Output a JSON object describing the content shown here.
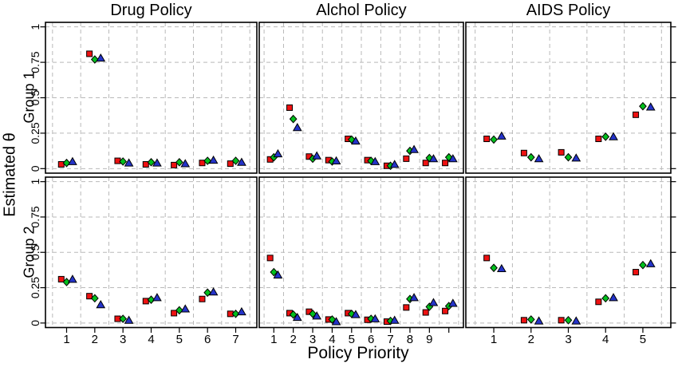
{
  "chart_data": {
    "type": "scatter",
    "layout": "trellis 2 rows x 3 columns",
    "xlabel": "Policy Priority",
    "ylabel": "Estimated θ",
    "col_titles": [
      "Drug Policy",
      "Alchol Policy",
      "AIDS Policy"
    ],
    "row_labels": [
      "Group 1",
      "Group 2"
    ],
    "ylim": [
      0,
      1
    ],
    "y_ticks": [
      0,
      0.25,
      0.5,
      0.75,
      1
    ],
    "y_tick_labels": [
      "0",
      "0.25",
      "0.5",
      "0.75",
      "1"
    ],
    "x_tick_labels": [
      [
        "1",
        "2",
        "3",
        "4",
        "5",
        "6",
        "7"
      ],
      [
        "1",
        "2",
        "3",
        "4",
        "5",
        "6",
        "7",
        "8",
        "9",
        ""
      ],
      [
        "1",
        "2",
        "3",
        "4",
        "5"
      ]
    ],
    "grid": "dashed gray; horizontal at y ticks, vertical at category boundaries",
    "legend": null,
    "series": [
      {
        "name": "red-square",
        "marker": "square",
        "fill": "#ee1111",
        "edge": "#000000",
        "dodge": -0.19
      },
      {
        "name": "green-diamond",
        "marker": "diamond",
        "fill": "#00bf1c",
        "edge": "#000000",
        "dodge": 0
      },
      {
        "name": "blue-triangle",
        "marker": "triangle",
        "fill": "#2433c9",
        "edge": "#000000",
        "dodge": 0.21
      }
    ],
    "panels": [
      {
        "row": "Group 1",
        "col": "Drug Policy",
        "x": [
          1,
          2,
          3,
          4,
          5,
          6,
          7
        ],
        "red_square": [
          0.03,
          0.81,
          0.055,
          0.03,
          0.025,
          0.04,
          0.035
        ],
        "green_diamond": [
          0.04,
          0.77,
          0.05,
          0.045,
          0.045,
          0.055,
          0.055
        ],
        "blue_triangle": [
          0.05,
          0.78,
          0.04,
          0.04,
          0.035,
          0.06,
          0.045
        ]
      },
      {
        "row": "Group 1",
        "col": "Alchol Policy",
        "x": [
          1,
          2,
          3,
          4,
          5,
          6,
          7,
          8,
          9,
          10
        ],
        "red_square": [
          0.065,
          0.43,
          0.085,
          0.06,
          0.21,
          0.06,
          0.02,
          0.07,
          0.04,
          0.04
        ],
        "green_diamond": [
          0.08,
          0.35,
          0.07,
          0.05,
          0.205,
          0.055,
          0.02,
          0.125,
          0.075,
          0.08
        ],
        "blue_triangle": [
          0.105,
          0.29,
          0.09,
          0.055,
          0.195,
          0.05,
          0.03,
          0.135,
          0.07,
          0.07
        ]
      },
      {
        "row": "Group 1",
        "col": "AIDS Policy",
        "x": [
          1,
          2,
          3,
          4,
          5
        ],
        "red_square": [
          0.21,
          0.11,
          0.115,
          0.21,
          0.38
        ],
        "green_diamond": [
          0.205,
          0.08,
          0.08,
          0.225,
          0.44
        ],
        "blue_triangle": [
          0.23,
          0.07,
          0.075,
          0.225,
          0.435
        ]
      },
      {
        "row": "Group 2",
        "col": "Drug Policy",
        "x": [
          1,
          2,
          3,
          4,
          5,
          6,
          7
        ],
        "red_square": [
          0.31,
          0.19,
          0.03,
          0.155,
          0.07,
          0.17,
          0.065
        ],
        "green_diamond": [
          0.29,
          0.175,
          0.03,
          0.165,
          0.09,
          0.215,
          0.065
        ],
        "blue_triangle": [
          0.31,
          0.13,
          0.02,
          0.18,
          0.1,
          0.22,
          0.08
        ]
      },
      {
        "row": "Group 2",
        "col": "Alchol Policy",
        "x": [
          1,
          2,
          3,
          4,
          5,
          6,
          7,
          8,
          9,
          10
        ],
        "red_square": [
          0.46,
          0.07,
          0.08,
          0.025,
          0.07,
          0.023,
          0.01,
          0.11,
          0.075,
          0.085
        ],
        "green_diamond": [
          0.36,
          0.06,
          0.065,
          0.025,
          0.065,
          0.03,
          0.015,
          0.17,
          0.115,
          0.12
        ],
        "blue_triangle": [
          0.34,
          0.04,
          0.05,
          0.01,
          0.06,
          0.03,
          0.02,
          0.18,
          0.145,
          0.14
        ]
      },
      {
        "row": "Group 2",
        "col": "AIDS Policy",
        "x": [
          1,
          2,
          3,
          4,
          5
        ],
        "red_square": [
          0.46,
          0.02,
          0.02,
          0.15,
          0.36
        ],
        "green_diamond": [
          0.39,
          0.025,
          0.02,
          0.175,
          0.41
        ],
        "blue_triangle": [
          0.385,
          0.015,
          0.015,
          0.18,
          0.42
        ]
      }
    ]
  }
}
